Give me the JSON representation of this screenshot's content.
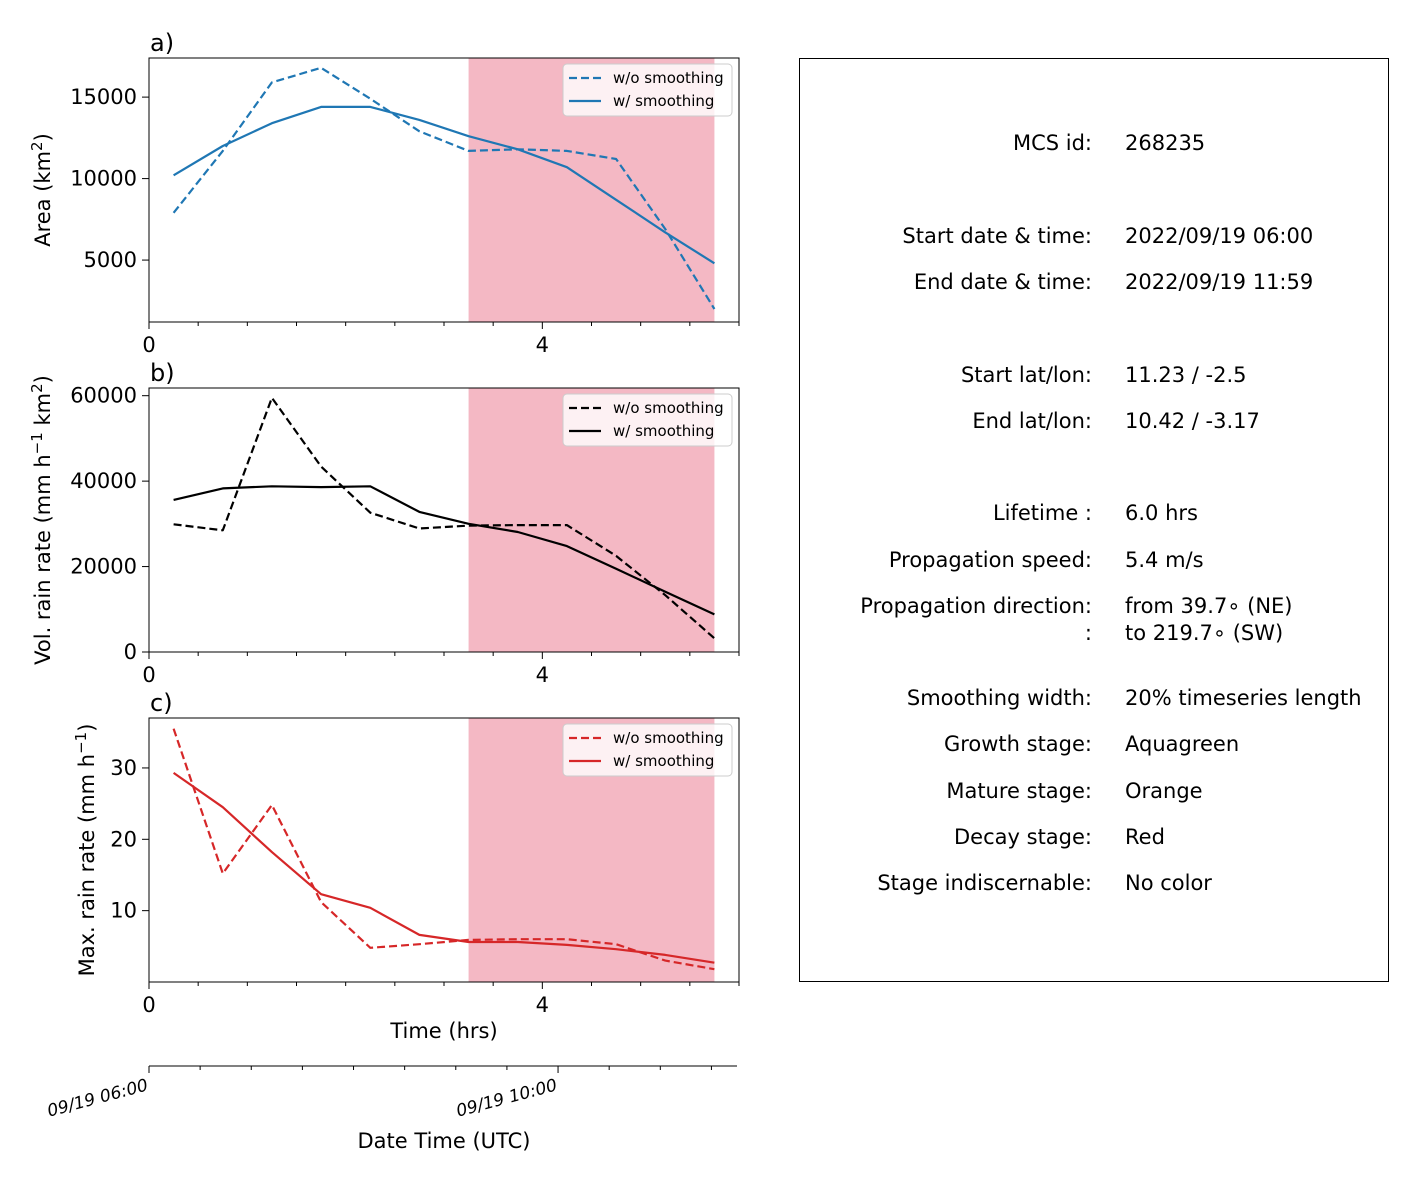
{
  "colors": {
    "area": "#1f77b4",
    "volrain": "#000000",
    "maxrain": "#d62728",
    "decay_shading": "#f4b8c4"
  },
  "chart_data": [
    {
      "type": "line",
      "panel_label": "a)",
      "ylabel_main": "Area  (km",
      "ylabel_sup": "2",
      "ylabel_tail": ")",
      "xlim": [
        0,
        6
      ],
      "ylim": [
        1200,
        17400
      ],
      "yticks": [
        5000,
        10000,
        15000
      ],
      "xticks": [
        0,
        4
      ],
      "shaded_x_range": [
        3.25,
        5.75
      ],
      "legend_position": "upper right",
      "series": [
        {
          "name": "w/o smoothing",
          "style": "dashed",
          "x": [
            0.25,
            0.75,
            1.25,
            1.75,
            2.25,
            2.75,
            3.25,
            3.75,
            4.25,
            4.75,
            5.25,
            5.75
          ],
          "y": [
            7900,
            11700,
            15900,
            16800,
            14900,
            12900,
            11700,
            11800,
            11700,
            11200,
            6900,
            2000
          ]
        },
        {
          "name": "w/ smoothing",
          "style": "solid",
          "x": [
            0.25,
            0.75,
            1.25,
            1.75,
            2.25,
            2.75,
            3.25,
            3.75,
            4.25,
            4.75,
            5.25,
            5.75
          ],
          "y": [
            10200,
            12000,
            13400,
            14400,
            14400,
            13600,
            12600,
            11800,
            10700,
            8700,
            6700,
            4800
          ]
        }
      ]
    },
    {
      "type": "line",
      "panel_label": "b)",
      "ylabel_main": "Vol. rain rate (mm h",
      "ylabel_sup1": "−1",
      "ylabel_mid": " km",
      "ylabel_sup2": "2",
      "ylabel_tail": ")",
      "xlim": [
        0,
        6
      ],
      "ylim": [
        0,
        61800
      ],
      "yticks": [
        0,
        20000,
        40000,
        60000
      ],
      "xticks": [
        0,
        4
      ],
      "shaded_x_range": [
        3.25,
        5.75
      ],
      "legend_position": "upper right",
      "series": [
        {
          "name": "w/o smoothing",
          "style": "dashed",
          "x": [
            0.25,
            0.75,
            1.25,
            1.75,
            2.25,
            2.75,
            3.25,
            3.75,
            4.25,
            4.75,
            5.25,
            5.75
          ],
          "y": [
            29900,
            28500,
            59500,
            43400,
            32600,
            28900,
            29600,
            29700,
            29700,
            22500,
            13300,
            3200
          ]
        },
        {
          "name": "w/ smoothing",
          "style": "solid",
          "x": [
            0.25,
            0.75,
            1.25,
            1.75,
            2.25,
            2.75,
            3.25,
            3.75,
            4.25,
            4.75,
            5.25,
            5.75
          ],
          "y": [
            35600,
            38300,
            38800,
            38600,
            38800,
            32800,
            30000,
            28100,
            24800,
            19500,
            14100,
            8800
          ]
        }
      ]
    },
    {
      "type": "line",
      "panel_label": "c)",
      "ylabel_main": "Max. rain rate  (mm h",
      "ylabel_sup": "−1",
      "ylabel_tail": ")",
      "xlabel": "Time (hrs)",
      "xlim": [
        0,
        6
      ],
      "ylim": [
        0,
        37
      ],
      "yticks": [
        10,
        20,
        30
      ],
      "xticks": [
        0,
        4
      ],
      "shaded_x_range": [
        3.25,
        5.75
      ],
      "legend_position": "upper right",
      "series": [
        {
          "name": "w/o smoothing",
          "style": "dashed",
          "x": [
            0.25,
            0.75,
            1.25,
            1.75,
            2.25,
            2.75,
            3.25,
            3.75,
            4.25,
            4.75,
            5.25,
            5.75
          ],
          "y": [
            35.5,
            15.2,
            24.8,
            11.2,
            4.8,
            5.3,
            5.9,
            6.0,
            6.0,
            5.3,
            3.0,
            1.8
          ]
        },
        {
          "name": "w/ smoothing",
          "style": "solid",
          "x": [
            0.25,
            0.75,
            1.25,
            1.75,
            2.25,
            2.75,
            3.25,
            3.75,
            4.25,
            4.75,
            5.25,
            5.75
          ],
          "y": [
            29.3,
            24.5,
            18.2,
            12.3,
            10.4,
            6.6,
            5.6,
            5.6,
            5.2,
            4.6,
            3.8,
            2.7
          ]
        }
      ]
    }
  ],
  "datetime_axis": {
    "label": "Date Time (UTC)",
    "tick_labels": [
      "09/19 06:00",
      "09/19 10:00"
    ],
    "tick_hours": [
      0,
      4
    ]
  },
  "info": {
    "rows": [
      {
        "key": "MCS id:",
        "value": "268235"
      },
      {
        "key": "Start date & time:",
        "value": "2022/09/19 06:00"
      },
      {
        "key": "End date & time:",
        "value": "2022/09/19 11:59"
      },
      {
        "key": "Start lat/lon:",
        "value": "11.23 / -2.5"
      },
      {
        "key": "End lat/lon:",
        "value": "10.42 / -3.17"
      },
      {
        "key": "Lifetime :",
        "value": "6.0 hrs"
      },
      {
        "key": "Propagation speed:",
        "value": "5.4 m/s"
      },
      {
        "key": "Propagation direction:",
        "value": "from  39.7∘ (NE)"
      },
      {
        "key": ":",
        "value": "to   219.7∘ (SW)"
      },
      {
        "key": "Smoothing width:",
        "value": "20% timeseries length"
      },
      {
        "key": "Growth stage:",
        "value": "Aquagreen"
      },
      {
        "key": "Mature stage:",
        "value": "Orange"
      },
      {
        "key": "Decay stage:",
        "value": "Red"
      },
      {
        "key": "Stage indiscernable:",
        "value": "No color"
      }
    ]
  }
}
